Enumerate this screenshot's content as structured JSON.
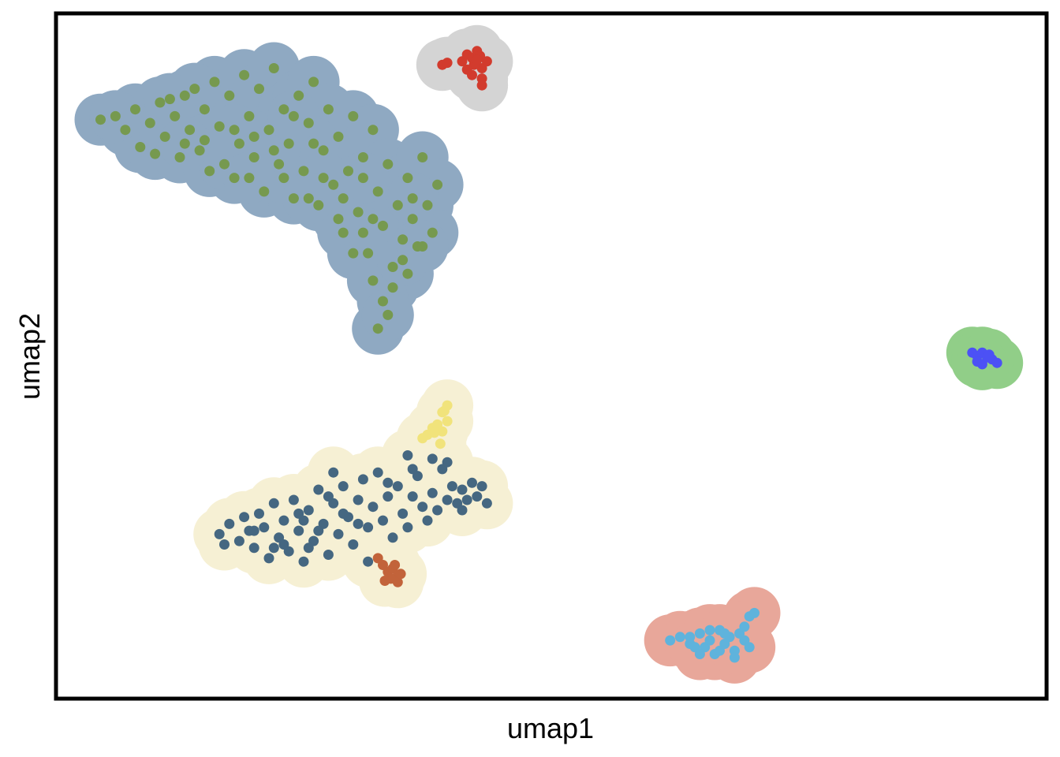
{
  "chart_data": {
    "type": "scatter",
    "xlabel": "umap1",
    "ylabel": "umap2",
    "xlim": [
      0,
      10
    ],
    "ylim": [
      0,
      10
    ],
    "grid": false,
    "legend": "none",
    "clusters": [
      {
        "id": "upper-left",
        "point_color": "#76994f",
        "halo_color": "#8fa9c2",
        "points": [
          [
            0.45,
            8.45
          ],
          [
            0.7,
            8.3
          ],
          [
            0.8,
            8.6
          ],
          [
            0.85,
            8.05
          ],
          [
            0.95,
            8.4
          ],
          [
            1.0,
            7.95
          ],
          [
            1.05,
            8.7
          ],
          [
            1.1,
            8.2
          ],
          [
            1.2,
            8.5
          ],
          [
            1.25,
            7.9
          ],
          [
            1.3,
            8.8
          ],
          [
            1.35,
            8.3
          ],
          [
            1.45,
            8.0
          ],
          [
            1.5,
            8.6
          ],
          [
            1.55,
            7.7
          ],
          [
            1.6,
            9.0
          ],
          [
            1.65,
            8.35
          ],
          [
            1.75,
            8.8
          ],
          [
            1.8,
            7.6
          ],
          [
            1.85,
            8.1
          ],
          [
            1.9,
            9.1
          ],
          [
            1.95,
            8.5
          ],
          [
            2.0,
            7.9
          ],
          [
            2.05,
            8.9
          ],
          [
            2.1,
            7.4
          ],
          [
            2.15,
            8.3
          ],
          [
            2.2,
            9.2
          ],
          [
            2.25,
            7.8
          ],
          [
            2.3,
            8.6
          ],
          [
            2.35,
            8.1
          ],
          [
            2.4,
            7.3
          ],
          [
            2.45,
            8.8
          ],
          [
            2.5,
            7.7
          ],
          [
            2.55,
            8.4
          ],
          [
            2.6,
            9.0
          ],
          [
            2.65,
            7.2
          ],
          [
            2.7,
            8.0
          ],
          [
            2.75,
            8.6
          ],
          [
            2.8,
            7.5
          ],
          [
            2.85,
            8.2
          ],
          [
            2.9,
            6.8
          ],
          [
            2.95,
            7.7
          ],
          [
            3.0,
            8.5
          ],
          [
            3.05,
            7.1
          ],
          [
            3.1,
            7.9
          ],
          [
            3.15,
            6.5
          ],
          [
            3.2,
            8.3
          ],
          [
            3.25,
            7.4
          ],
          [
            3.3,
            6.9
          ],
          [
            3.35,
            7.8
          ],
          [
            3.4,
            6.3
          ],
          [
            3.45,
            7.2
          ],
          [
            3.5,
            6.7
          ],
          [
            3.55,
            7.6
          ],
          [
            3.6,
            7.0
          ],
          [
            3.65,
            6.6
          ],
          [
            3.7,
            7.9
          ],
          [
            3.75,
            7.2
          ],
          [
            3.8,
            6.8
          ],
          [
            3.85,
            7.5
          ],
          [
            1.4,
            8.9
          ],
          [
            1.7,
            7.8
          ],
          [
            2.0,
            8.2
          ],
          [
            2.3,
            7.6
          ],
          [
            2.6,
            8.1
          ],
          [
            2.9,
            7.3
          ],
          [
            3.2,
            7.0
          ],
          [
            3.4,
            6.0
          ],
          [
            3.55,
            6.2
          ],
          [
            3.0,
            6.5
          ],
          [
            3.25,
            5.4
          ],
          [
            3.3,
            5.8
          ],
          [
            3.2,
            6.1
          ],
          [
            3.35,
            5.6
          ],
          [
            0.6,
            8.5
          ],
          [
            1.15,
            8.75
          ],
          [
            1.5,
            8.15
          ],
          [
            2.2,
            8.0
          ],
          [
            2.7,
            7.6
          ],
          [
            3.6,
            7.3
          ],
          [
            3.1,
            7.6
          ],
          [
            2.4,
            8.5
          ],
          [
            1.8,
            8.3
          ],
          [
            3.5,
            6.4
          ],
          [
            3.1,
            6.8
          ],
          [
            2.85,
            7.0
          ],
          [
            3.7,
            6.6
          ],
          [
            2.55,
            7.3
          ],
          [
            1.95,
            7.6
          ],
          [
            1.3,
            8.1
          ]
        ]
      },
      {
        "id": "top-center",
        "point_color": "#d23b2d",
        "halo_color": "#d4d4d4",
        "points": [
          [
            3.9,
            9.25
          ],
          [
            3.95,
            9.28
          ],
          [
            4.1,
            9.3
          ],
          [
            4.15,
            9.4
          ],
          [
            4.2,
            9.35
          ],
          [
            4.25,
            9.45
          ],
          [
            4.3,
            9.2
          ],
          [
            4.2,
            9.1
          ],
          [
            4.3,
            9.05
          ],
          [
            4.35,
            9.3
          ],
          [
            4.28,
            9.38
          ],
          [
            4.22,
            9.25
          ],
          [
            4.15,
            9.18
          ],
          [
            4.3,
            8.95
          ],
          [
            4.25,
            9.32
          ]
        ]
      },
      {
        "id": "center-left",
        "point_color": "#456781",
        "halo_color": "#f6f0d4",
        "points": [
          [
            1.65,
            2.4
          ],
          [
            1.75,
            2.55
          ],
          [
            1.85,
            2.3
          ],
          [
            1.9,
            2.65
          ],
          [
            1.95,
            2.45
          ],
          [
            2.0,
            2.2
          ],
          [
            2.05,
            2.7
          ],
          [
            2.1,
            2.5
          ],
          [
            2.15,
            2.05
          ],
          [
            2.2,
            2.85
          ],
          [
            2.25,
            2.35
          ],
          [
            2.3,
            2.6
          ],
          [
            2.35,
            2.15
          ],
          [
            2.4,
            2.9
          ],
          [
            2.45,
            2.45
          ],
          [
            2.5,
            2.0
          ],
          [
            2.55,
            2.75
          ],
          [
            2.6,
            2.3
          ],
          [
            2.65,
            3.05
          ],
          [
            2.7,
            2.55
          ],
          [
            2.75,
            2.1
          ],
          [
            2.8,
            2.85
          ],
          [
            2.85,
            2.4
          ],
          [
            2.9,
            3.1
          ],
          [
            2.95,
            2.65
          ],
          [
            3.0,
            2.25
          ],
          [
            3.05,
            2.9
          ],
          [
            3.1,
            3.2
          ],
          [
            3.15,
            2.5
          ],
          [
            3.2,
            2.8
          ],
          [
            3.25,
            3.3
          ],
          [
            3.3,
            2.6
          ],
          [
            3.35,
            2.95
          ],
          [
            3.4,
            2.35
          ],
          [
            3.45,
            3.1
          ],
          [
            3.5,
            2.7
          ],
          [
            3.55,
            2.5
          ],
          [
            3.6,
            2.95
          ],
          [
            3.65,
            3.25
          ],
          [
            3.7,
            2.8
          ],
          [
            3.75,
            2.6
          ],
          [
            3.8,
            3.0
          ],
          [
            3.85,
            2.75
          ],
          [
            3.9,
            3.35
          ],
          [
            3.95,
            2.9
          ],
          [
            4.0,
            3.1
          ],
          [
            4.05,
            2.85
          ],
          [
            4.1,
            3.05
          ],
          [
            4.15,
            2.9
          ],
          [
            4.2,
            3.15
          ],
          [
            4.25,
            2.95
          ],
          [
            4.3,
            3.1
          ],
          [
            4.35,
            2.85
          ],
          [
            3.55,
            3.55
          ],
          [
            3.8,
            3.5
          ],
          [
            2.8,
            3.3
          ],
          [
            3.15,
            2.0
          ],
          [
            2.5,
            2.6
          ],
          [
            2.0,
            2.45
          ],
          [
            2.3,
            2.25
          ],
          [
            2.65,
            2.45
          ],
          [
            2.9,
            2.7
          ],
          [
            3.35,
            3.15
          ],
          [
            3.05,
            2.55
          ],
          [
            2.75,
            2.95
          ],
          [
            2.45,
            2.7
          ],
          [
            2.2,
            2.2
          ],
          [
            1.7,
            2.25
          ],
          [
            3.95,
            3.45
          ],
          [
            4.1,
            2.75
          ],
          [
            3.6,
            3.35
          ],
          [
            2.55,
            2.2
          ]
        ]
      },
      {
        "id": "yellow-tail",
        "point_color": "#f1e37b",
        "halo_color": "#f6f0d4",
        "points": [
          [
            3.75,
            3.85
          ],
          [
            3.8,
            3.95
          ],
          [
            3.85,
            4.0
          ],
          [
            3.9,
            3.9
          ],
          [
            3.95,
            4.05
          ],
          [
            3.7,
            3.8
          ],
          [
            3.88,
            3.72
          ],
          [
            3.92,
            4.2
          ],
          [
            3.95,
            4.28
          ],
          [
            3.9,
            4.18
          ],
          [
            3.82,
            3.88
          ]
        ]
      },
      {
        "id": "orange-tail",
        "point_color": "#c2633a",
        "halo_color": "#f6f0d4",
        "points": [
          [
            3.25,
            2.05
          ],
          [
            3.3,
            1.95
          ],
          [
            3.35,
            1.85
          ],
          [
            3.4,
            1.9
          ],
          [
            3.45,
            1.8
          ],
          [
            3.38,
            1.75
          ],
          [
            3.45,
            1.7
          ],
          [
            3.32,
            1.72
          ],
          [
            3.42,
            1.95
          ],
          [
            3.48,
            1.82
          ]
        ]
      },
      {
        "id": "bottom-right",
        "point_color": "#5fb3dc",
        "halo_color": "#e8a79a",
        "points": [
          [
            6.2,
            0.85
          ],
          [
            6.3,
            0.9
          ],
          [
            6.4,
            0.8
          ],
          [
            6.5,
            0.95
          ],
          [
            6.55,
            0.75
          ],
          [
            6.6,
            0.85
          ],
          [
            6.65,
            0.65
          ],
          [
            6.7,
            1.0
          ],
          [
            6.75,
            0.8
          ],
          [
            6.8,
            0.9
          ],
          [
            6.85,
            0.7
          ],
          [
            6.9,
            0.95
          ],
          [
            6.95,
            0.85
          ],
          [
            6.85,
            0.6
          ],
          [
            6.7,
            0.7
          ],
          [
            6.5,
            0.65
          ],
          [
            6.4,
            0.9
          ],
          [
            7.0,
            1.2
          ],
          [
            7.05,
            1.25
          ],
          [
            7.0,
            0.75
          ],
          [
            6.95,
            1.05
          ],
          [
            6.6,
            1.0
          ],
          [
            6.75,
            0.95
          ],
          [
            6.45,
            0.75
          ]
        ]
      },
      {
        "id": "far-right",
        "point_color": "#4c51f5",
        "halo_color": "#91ce88",
        "points": [
          [
            9.25,
            5.05
          ],
          [
            9.3,
            5.0
          ],
          [
            9.35,
            5.05
          ],
          [
            9.4,
            4.98
          ],
          [
            9.45,
            4.95
          ],
          [
            9.5,
            4.9
          ],
          [
            9.3,
            4.92
          ],
          [
            9.42,
            5.02
          ],
          [
            9.35,
            4.88
          ]
        ]
      }
    ]
  }
}
